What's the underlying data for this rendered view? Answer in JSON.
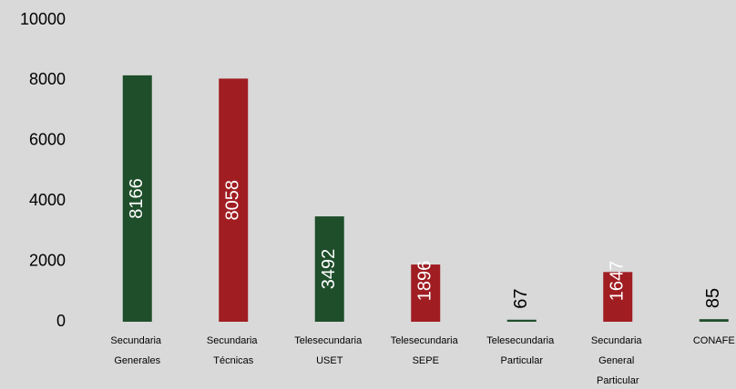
{
  "chart_data": {
    "type": "bar",
    "categories": [
      "Secundaria Generales",
      "Secundaria Técnicas",
      "Telesecundaria USET",
      "Telesecundaria SEPE",
      "Telesecundaria Particular",
      "Secundaria General Particular",
      "CONAFE"
    ],
    "values": [
      8166,
      8058,
      3492,
      1896,
      67,
      1647,
      85
    ],
    "colors": [
      "#1f4e2b",
      "#a01d22",
      "#1f4e2b",
      "#a01d22",
      "#1f4e2b",
      "#a01d22",
      "#1f4e2b"
    ],
    "ylim": [
      0,
      10000
    ],
    "yticks": [
      0,
      2000,
      4000,
      6000,
      8000,
      10000
    ],
    "grid": false,
    "background": "#d9d9d9"
  }
}
